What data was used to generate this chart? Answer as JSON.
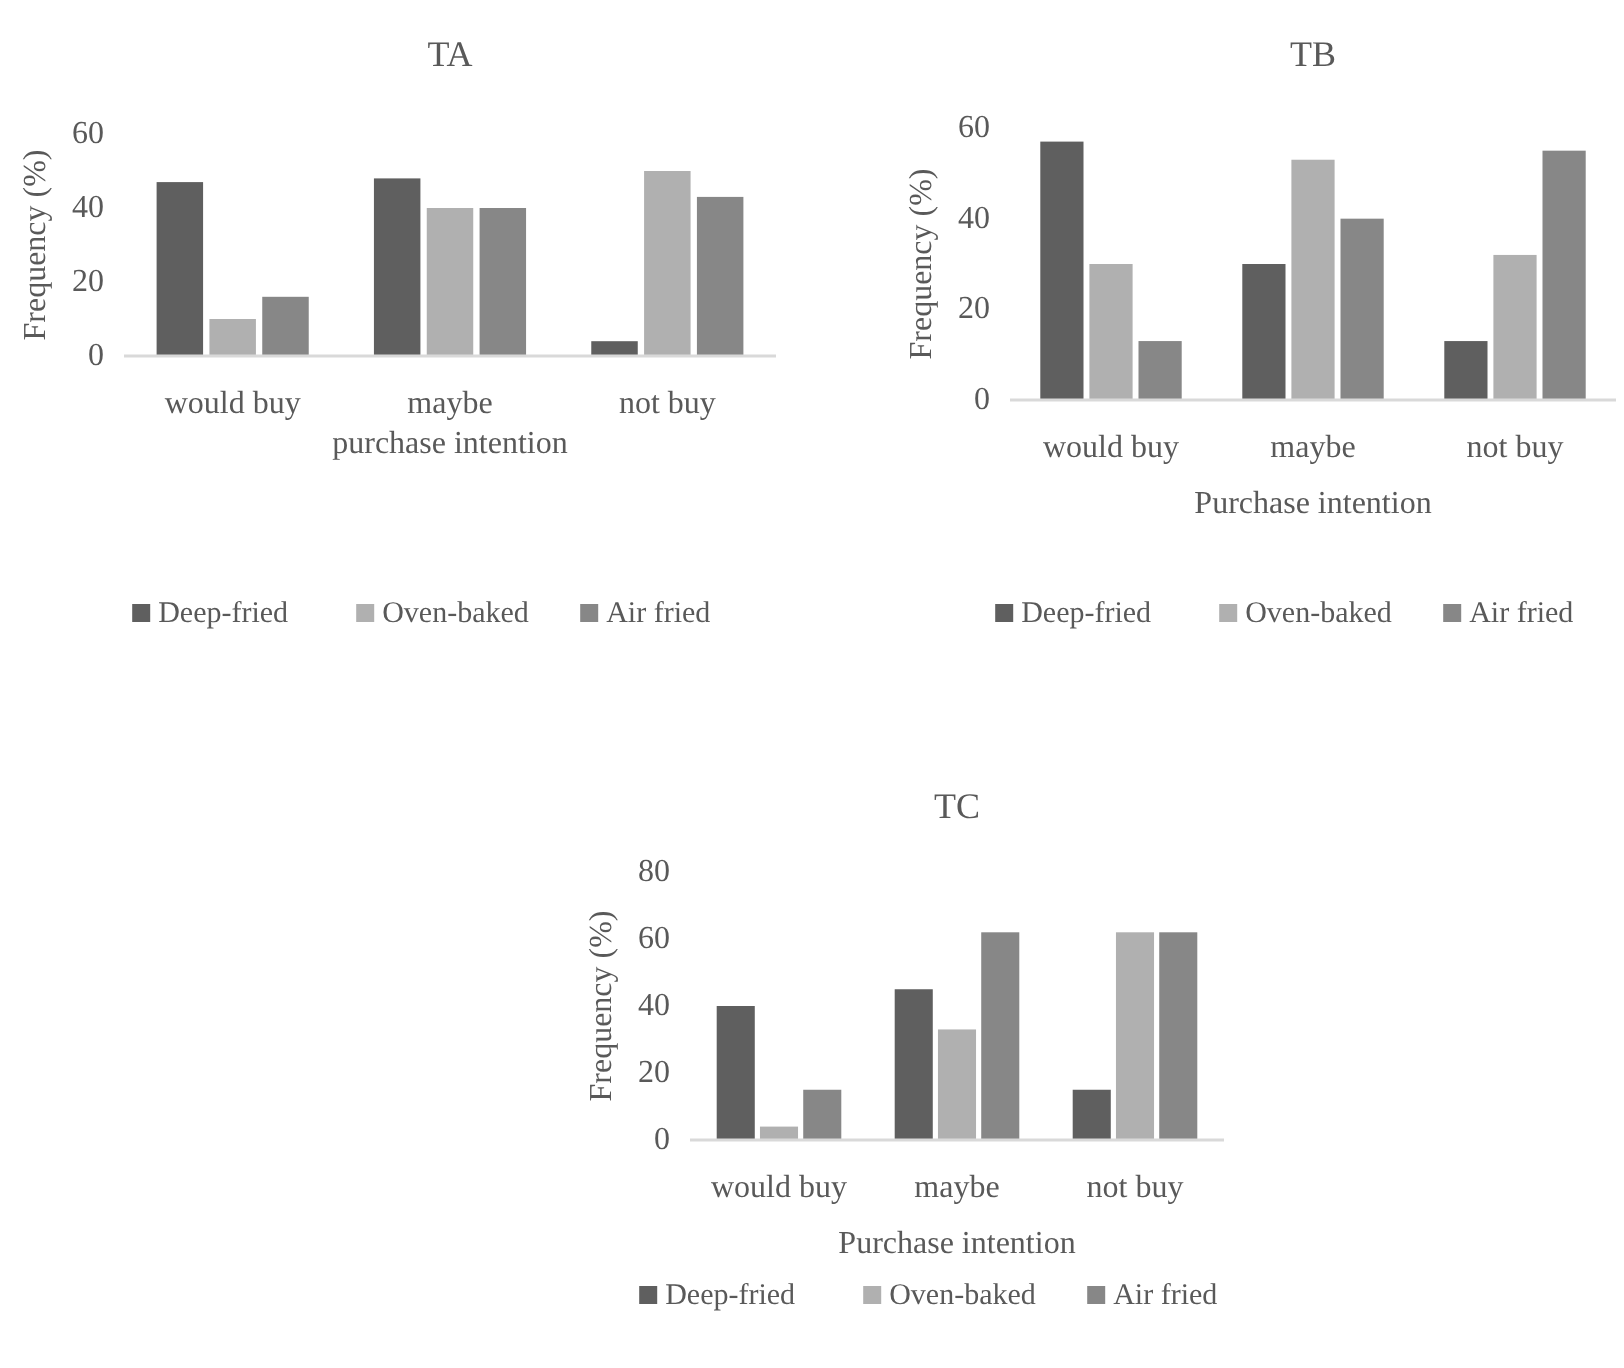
{
  "chart_data": [
    {
      "type": "bar",
      "title": "TA",
      "xlabel": "purchase intention",
      "ylabel": "Frequency (%)",
      "categories": [
        "would buy",
        "maybe",
        "not buy"
      ],
      "ylim": [
        0,
        60
      ],
      "yticks": [
        0,
        20,
        40,
        60
      ],
      "grid": false,
      "legend": "bottom",
      "series": [
        {
          "name": "Deep-fried",
          "color": "#5f5f5f",
          "values": [
            47,
            48,
            4
          ]
        },
        {
          "name": "Oven-baked",
          "color": "#b0b0b0",
          "values": [
            10,
            40,
            50
          ]
        },
        {
          "name": "Air fried",
          "color": "#878787",
          "values": [
            16,
            40,
            43
          ]
        }
      ]
    },
    {
      "type": "bar",
      "title": "TB",
      "xlabel": "Purchase intention",
      "ylabel": "Frequency (%)",
      "categories": [
        "would buy",
        "maybe",
        "not buy"
      ],
      "ylim": [
        0,
        60
      ],
      "yticks": [
        0,
        20,
        40,
        60
      ],
      "grid": false,
      "legend": "bottom",
      "series": [
        {
          "name": "Deep-fried",
          "color": "#5f5f5f",
          "values": [
            57,
            30,
            13
          ]
        },
        {
          "name": "Oven-baked",
          "color": "#b0b0b0",
          "values": [
            30,
            53,
            32
          ]
        },
        {
          "name": "Air fried",
          "color": "#878787",
          "values": [
            13,
            40,
            55
          ]
        }
      ]
    },
    {
      "type": "bar",
      "title": "TC",
      "xlabel": "Purchase intention",
      "ylabel": "Frequency (%)",
      "categories": [
        "would buy",
        "maybe",
        "not buy"
      ],
      "ylim": [
        0,
        80
      ],
      "yticks": [
        0,
        20,
        40,
        60,
        80
      ],
      "grid": false,
      "legend": "bottom",
      "series": [
        {
          "name": "Deep-fried",
          "color": "#5f5f5f",
          "values": [
            40,
            45,
            15
          ]
        },
        {
          "name": "Oven-baked",
          "color": "#b0b0b0",
          "values": [
            4,
            33,
            62
          ]
        },
        {
          "name": "Air fried",
          "color": "#878787",
          "values": [
            15,
            62,
            62
          ]
        }
      ]
    }
  ]
}
